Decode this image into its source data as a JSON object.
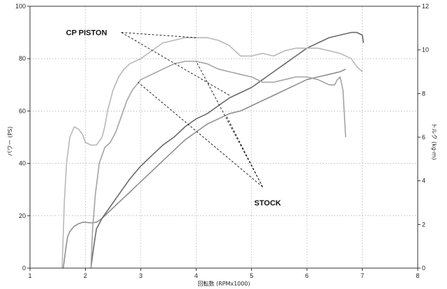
{
  "chart_data": {
    "type": "line",
    "xlabel": "回転数 (RPMx1000)",
    "ylabel": "パワー (PS)",
    "y2label": "トルク (kg-m)",
    "xlim": [
      1,
      8
    ],
    "ylim": [
      0,
      100
    ],
    "y2lim": [
      0,
      12
    ],
    "x_ticks": [
      "1",
      "2",
      "3",
      "4",
      "5",
      "6",
      "7",
      "8"
    ],
    "y_ticks": [
      "0",
      "20",
      "40",
      "60",
      "80",
      "100"
    ],
    "y2_ticks": [
      "0",
      "2",
      "4",
      "6",
      "8",
      "10",
      "12"
    ],
    "grid": true,
    "annotations": [
      {
        "label": "CP PISTON",
        "x": 1.65,
        "y": 90
      },
      {
        "label": "STOCK",
        "x": 5.05,
        "y": 25
      }
    ],
    "leader_lines": [
      {
        "from": [
          2.65,
          90
        ],
        "to": [
          4.0,
          88
        ]
      },
      {
        "from": [
          2.65,
          90
        ],
        "to": [
          4.6,
          66
        ]
      },
      {
        "from": [
          5.2,
          31
        ],
        "to": [
          4.0,
          79
        ]
      },
      {
        "from": [
          5.2,
          31
        ],
        "to": [
          4.55,
          58
        ]
      },
      {
        "from": [
          5.2,
          31
        ],
        "to": [
          2.95,
          71
        ]
      }
    ],
    "series": [
      {
        "color": "#8f8f8f",
        "axis": "y",
        "x": [
          1.6,
          1.62,
          1.65,
          1.68,
          1.72,
          1.8,
          1.88,
          1.95,
          2.0,
          2.1,
          2.2,
          2.3,
          2.4,
          2.5,
          2.6,
          2.7,
          2.8,
          2.9,
          3.0,
          3.2,
          3.4,
          3.6,
          3.8,
          4.0,
          4.2,
          4.4,
          4.6,
          4.8,
          5.0,
          5.2,
          5.5,
          5.8,
          6.0,
          6.2,
          6.4,
          6.6,
          6.7
        ],
        "y": [
          0,
          3,
          8,
          12,
          14,
          16,
          17,
          17.5,
          17.5,
          17.3,
          17.5,
          19,
          21,
          23,
          25,
          27,
          29,
          31,
          33,
          37,
          41,
          45,
          49,
          52,
          55,
          57,
          59,
          60,
          62,
          64,
          67,
          70,
          72,
          73,
          74,
          75,
          76
        ]
      },
      {
        "color": "#6a6a6a",
        "axis": "y",
        "x": [
          2.1,
          2.15,
          2.2,
          2.3,
          2.4,
          2.5,
          2.6,
          2.7,
          2.8,
          3.0,
          3.2,
          3.4,
          3.6,
          3.8,
          4.0,
          4.2,
          4.4,
          4.6,
          4.8,
          5.0,
          5.2,
          5.4,
          5.6,
          5.8,
          6.0,
          6.2,
          6.4,
          6.6,
          6.8,
          6.9,
          7.0,
          7.02
        ],
        "y": [
          0,
          8,
          15,
          19,
          22,
          25,
          28,
          31,
          34,
          39,
          43,
          47,
          50,
          54,
          57,
          59,
          62,
          65,
          67,
          69,
          72,
          75,
          78,
          81,
          84,
          86,
          88,
          89,
          90,
          90,
          89,
          86
        ]
      },
      {
        "color": "#b8b8b8",
        "axis": "y",
        "x": [
          1.58,
          1.62,
          1.66,
          1.72,
          1.8,
          1.88,
          1.95,
          2.0,
          2.1,
          2.2,
          2.3,
          2.35,
          2.4,
          2.5,
          2.6,
          2.7,
          2.8,
          2.9,
          3.0,
          3.2,
          3.4,
          3.6,
          3.8,
          4.0,
          4.2,
          4.4,
          4.6,
          4.8,
          5.0,
          5.2,
          5.4,
          5.6,
          5.8,
          6.0,
          6.2,
          6.4,
          6.6,
          6.8,
          6.9,
          7.0
        ],
        "y": [
          0,
          25,
          40,
          50,
          54,
          53,
          51,
          48,
          47,
          47,
          50,
          54,
          60,
          68,
          73,
          76,
          78,
          79,
          80,
          83,
          86,
          87,
          88,
          88,
          88,
          87,
          85,
          81,
          81,
          82,
          81,
          83,
          84,
          84,
          84,
          83,
          82,
          80,
          77,
          75
        ]
      },
      {
        "color": "#a3a3a3",
        "axis": "y",
        "x": [
          2.1,
          2.13,
          2.18,
          2.25,
          2.35,
          2.45,
          2.55,
          2.65,
          2.75,
          2.85,
          3.0,
          3.2,
          3.4,
          3.6,
          3.8,
          4.0,
          4.2,
          4.4,
          4.6,
          4.8,
          5.0,
          5.2,
          5.4,
          5.6,
          5.8,
          6.0,
          6.2,
          6.4,
          6.5,
          6.55,
          6.6,
          6.65,
          6.7
        ],
        "y": [
          0,
          15,
          28,
          40,
          46,
          48,
          52,
          58,
          64,
          68,
          72,
          74,
          76,
          78,
          79,
          79,
          78,
          76,
          75,
          74,
          73,
          71,
          71,
          72,
          73,
          73,
          72,
          70,
          70,
          72,
          73,
          68,
          50
        ]
      }
    ]
  }
}
